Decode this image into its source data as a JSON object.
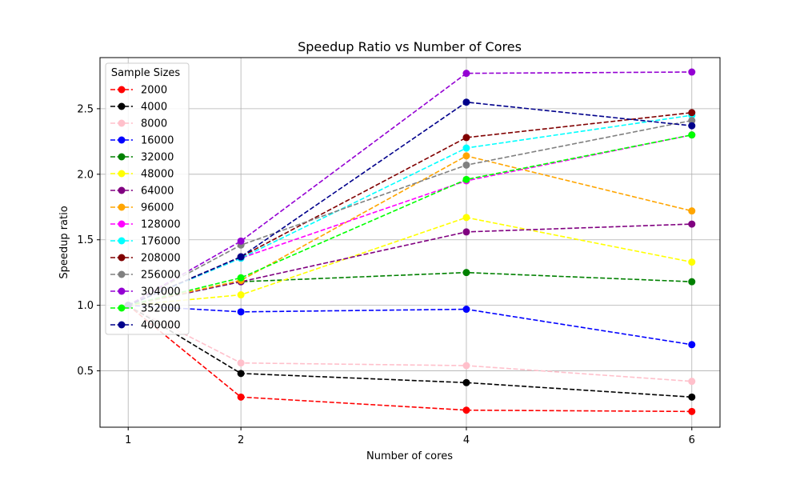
{
  "chart_data": {
    "type": "line",
    "title": "Speedup Ratio vs Number of Cores",
    "xlabel": "Number of cores",
    "ylabel": "Speedup ratio",
    "x": [
      1,
      2,
      4,
      6
    ],
    "xticks": [
      1,
      2,
      4,
      6
    ],
    "xlim": [
      0.75,
      6.25
    ],
    "ylim": [
      0.07,
      2.89
    ],
    "yticks": [
      0.5,
      1.0,
      1.5,
      2.0,
      2.5
    ],
    "ytick_labels": [
      "0.5",
      "1.0",
      "1.5",
      "2.0",
      "2.5"
    ],
    "grid": true,
    "line_style": "dashed",
    "marker": "circle",
    "legend": {
      "title": "Sample Sizes",
      "placement": "top-left"
    },
    "series": [
      {
        "name": "2000",
        "color": "#ff0000",
        "values": [
          1.0,
          0.3,
          0.2,
          0.19
        ]
      },
      {
        "name": "4000",
        "color": "#000000",
        "values": [
          1.0,
          0.48,
          0.41,
          0.3
        ]
      },
      {
        "name": "8000",
        "color": "#ffc0cb",
        "values": [
          1.0,
          0.56,
          0.54,
          0.42
        ]
      },
      {
        "name": "16000",
        "color": "#0000ff",
        "values": [
          1.0,
          0.95,
          0.97,
          0.7
        ]
      },
      {
        "name": "32000",
        "color": "#008000",
        "values": [
          1.0,
          1.18,
          1.25,
          1.18
        ]
      },
      {
        "name": "48000",
        "color": "#ffff00",
        "values": [
          1.0,
          1.08,
          1.67,
          1.33
        ]
      },
      {
        "name": "64000",
        "color": "#800080",
        "values": [
          1.0,
          1.18,
          1.56,
          1.62
        ]
      },
      {
        "name": "96000",
        "color": "#ffa500",
        "values": [
          1.0,
          1.19,
          2.14,
          1.72
        ]
      },
      {
        "name": "128000",
        "color": "#ff00ff",
        "values": [
          1.0,
          1.36,
          1.95,
          2.3
        ]
      },
      {
        "name": "176000",
        "color": "#00ffff",
        "values": [
          1.0,
          1.36,
          2.2,
          2.45
        ]
      },
      {
        "name": "208000",
        "color": "#800000",
        "values": [
          1.0,
          1.37,
          2.28,
          2.47
        ]
      },
      {
        "name": "256000",
        "color": "#808080",
        "values": [
          1.0,
          1.46,
          2.07,
          2.41
        ]
      },
      {
        "name": "304000",
        "color": "#9400d3",
        "values": [
          1.0,
          1.49,
          2.77,
          2.78
        ]
      },
      {
        "name": "352000",
        "color": "#00ff00",
        "values": [
          1.0,
          1.21,
          1.96,
          2.3
        ]
      },
      {
        "name": "400000",
        "color": "#00008b",
        "values": [
          1.0,
          1.37,
          2.55,
          2.37
        ]
      }
    ]
  }
}
